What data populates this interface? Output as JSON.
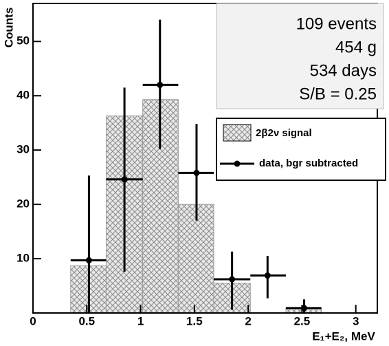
{
  "chart_data": {
    "type": "histogram",
    "x_label": "E₁+E₂, MeV",
    "y_label": "Counts",
    "xlim": [
      0,
      3.2
    ],
    "ylim": [
      0,
      57
    ],
    "xticks": [
      0,
      0.5,
      1,
      1.5,
      2,
      2.5,
      3
    ],
    "yticks": [
      10,
      20,
      30,
      40,
      50
    ],
    "histogram": {
      "name": "2β2ν signal",
      "color": "#999999",
      "bins": [
        0.35,
        0.68,
        1.02,
        1.35,
        1.68,
        2.02,
        2.35,
        2.68
      ],
      "counts": [
        8.7,
        36.3,
        39.3,
        20,
        5.5,
        0,
        0.9
      ]
    },
    "points": {
      "name": "data, bgr subtracted",
      "color": "#000000",
      "x": [
        0.52,
        0.85,
        1.18,
        1.52,
        1.85,
        2.18,
        2.52
      ],
      "values": [
        9.7,
        24.6,
        42,
        25.8,
        6.2,
        6.9,
        0.9
      ],
      "y_low": [
        0,
        7.6,
        30.2,
        17,
        0.6,
        2.7,
        0
      ],
      "y_high": [
        25.3,
        41.5,
        54,
        34.8,
        11.3,
        10.5,
        2.5
      ],
      "x_low": [
        0.35,
        0.68,
        1.02,
        1.35,
        1.68,
        2.02,
        2.35
      ],
      "x_high": [
        0.68,
        1.02,
        1.35,
        1.68,
        2.02,
        2.35,
        2.68
      ]
    },
    "annotations": [
      "109 events",
      "454 g",
      "534 days",
      "S/B = 0.25"
    ]
  }
}
